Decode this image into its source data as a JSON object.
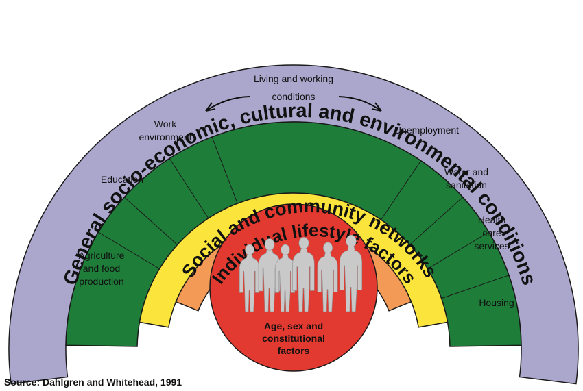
{
  "colors": {
    "outer_band": "#aaa6cc",
    "living_band": "#1f7d3a",
    "social_band": "#fbe43c",
    "lifestyle_band": "#f39a56",
    "core": "#e23a30",
    "figures": "#c9c9c9",
    "outline": "#1a1a1a"
  },
  "outer_ring": {
    "title": "General socio-economic, cultural and environmental conditions"
  },
  "living_ring": {
    "title_line1": "Living and working",
    "title_line2": "conditions",
    "left_sectors": [
      {
        "lines": [
          "Agriculture",
          "and food",
          "production"
        ]
      },
      {
        "lines": [
          "Education"
        ]
      },
      {
        "lines": [
          "Work",
          "environment"
        ]
      }
    ],
    "right_sectors": [
      {
        "lines": [
          "Unemployment"
        ]
      },
      {
        "lines": [
          "Water and",
          "sanitation"
        ]
      },
      {
        "lines": [
          "Health",
          "care",
          "services"
        ]
      },
      {
        "lines": [
          "Housing"
        ]
      }
    ]
  },
  "social_ring": {
    "title": "Social and community networks"
  },
  "lifestyle_ring": {
    "title": "Individual lifestyle factors"
  },
  "core": {
    "line1": "Age, sex and",
    "line2": "constitutional",
    "line3": "factors",
    "figures_icon": "people-silhouettes-icon"
  },
  "source": "Source: Dahlgren and Whitehead, 1991"
}
